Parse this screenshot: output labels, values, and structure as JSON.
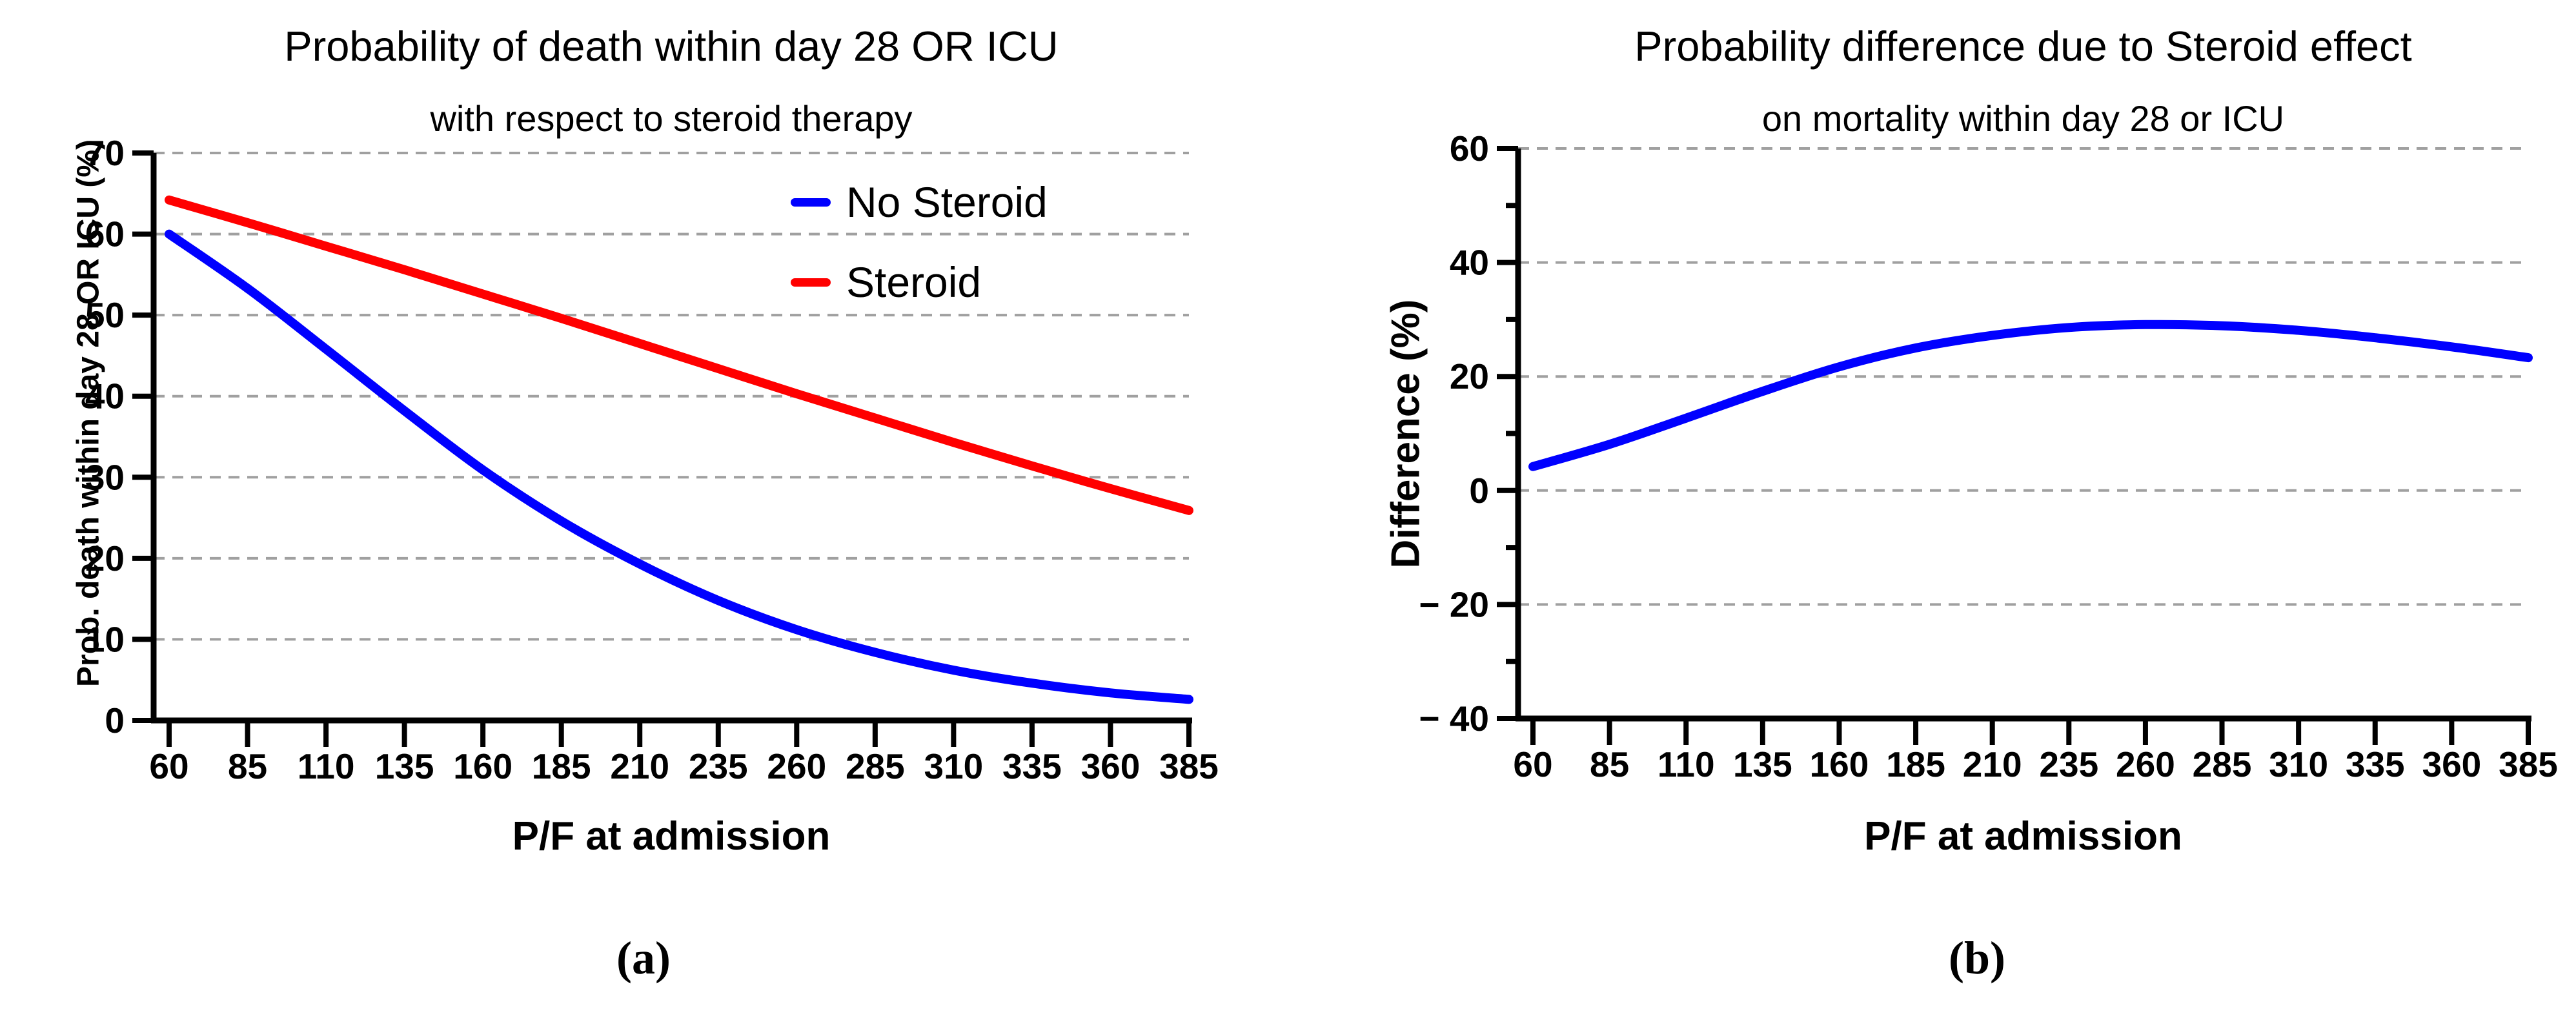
{
  "panels": [
    {
      "id": "a",
      "title": "Probability of death within day 28 OR ICU",
      "subtitle": "with respect to steroid therapy",
      "x_axis_label": "P/F at admission",
      "y_axis_label": "Prob. death within day 28 OR ICU (%)",
      "caption": "(a)",
      "legend": [
        {
          "label": "No Steroid",
          "color": "#0000FF"
        },
        {
          "label": "Steroid",
          "color": "#FF0000"
        }
      ]
    },
    {
      "id": "b",
      "title": "Probability difference due to Steroid effect",
      "subtitle": "on mortality within day 28 or ICU",
      "x_axis_label": "P/F at admission",
      "y_axis_label": "Difference (%)",
      "caption": "(b)"
    }
  ],
  "colors": {
    "no_steroid": "#0000FF",
    "steroid": "#FF0000",
    "difference": "#0000FF",
    "gridline": "#A0A0A0",
    "axis": "#000000"
  },
  "chart_data": [
    {
      "type": "line",
      "title": "Probability of death within day 28 OR ICU",
      "subtitle": "with respect to steroid therapy",
      "xlabel": "P/F at admission",
      "ylabel": "Prob. death within day 28 OR ICU (%)",
      "xlim": [
        60,
        385
      ],
      "ylim": [
        0,
        70
      ],
      "grid": "horizontal-dashed",
      "legend_position": "top-right",
      "x": [
        60,
        85,
        110,
        135,
        160,
        185,
        210,
        235,
        260,
        285,
        310,
        335,
        360,
        385
      ],
      "x_tick_labels": [
        "60",
        "85",
        "110",
        "135",
        "160",
        "185",
        "210",
        "235",
        "260",
        "285",
        "310",
        "335",
        "360",
        "385"
      ],
      "y_ticks": [
        {
          "value": 0,
          "label": "0"
        },
        {
          "value": 10,
          "label": "10"
        },
        {
          "value": 20,
          "label": "20"
        },
        {
          "value": 30,
          "label": "30"
        },
        {
          "value": 40,
          "label": "40"
        },
        {
          "value": 50,
          "label": "50"
        },
        {
          "value": 60,
          "label": "60"
        },
        {
          "value": 70,
          "label": "70"
        }
      ],
      "y_minor_ticks": [],
      "grid_values": [
        10,
        20,
        30,
        40,
        50,
        60,
        70
      ],
      "series": [
        {
          "name": "No Steroid",
          "color": "#0000FF",
          "values": [
            60.0,
            53.3,
            45.8,
            38.2,
            30.9,
            24.6,
            19.3,
            14.8,
            11.2,
            8.4,
            6.2,
            4.6,
            3.4,
            2.6
          ]
        },
        {
          "name": "Steroid",
          "color": "#FF0000",
          "values": [
            64.2,
            61.4,
            58.5,
            55.6,
            52.6,
            49.6,
            46.5,
            43.4,
            40.3,
            37.3,
            34.3,
            31.4,
            28.6,
            25.9
          ]
        }
      ]
    },
    {
      "type": "line",
      "title": "Probability difference due to Steroid effect",
      "subtitle": "on mortality within day 28 or ICU",
      "xlabel": "P/F at admission",
      "ylabel": "Difference (%)",
      "xlim": [
        60,
        385
      ],
      "ylim": [
        -40,
        60
      ],
      "grid": "horizontal-dashed",
      "legend_position": "none",
      "x": [
        60,
        85,
        110,
        135,
        160,
        185,
        210,
        235,
        260,
        285,
        310,
        335,
        360,
        385
      ],
      "x_tick_labels": [
        "60",
        "85",
        "110",
        "135",
        "160",
        "185",
        "210",
        "235",
        "260",
        "285",
        "310",
        "335",
        "360",
        "385"
      ],
      "y_ticks": [
        {
          "value": -40,
          "label": "− 40"
        },
        {
          "value": -20,
          "label": "− 20"
        },
        {
          "value": 0,
          "label": "0"
        },
        {
          "value": 20,
          "label": "20"
        },
        {
          "value": 40,
          "label": "40"
        },
        {
          "value": 60,
          "label": "60"
        }
      ],
      "y_minor_ticks": [
        -30,
        -10,
        10,
        30,
        50
      ],
      "grid_values": [
        -20,
        0,
        20,
        40,
        60
      ],
      "series": [
        {
          "name": "Difference",
          "color": "#0000FF",
          "values": [
            4.2,
            8.1,
            12.7,
            17.4,
            21.7,
            25.0,
            27.2,
            28.6,
            29.1,
            28.9,
            28.1,
            26.8,
            25.2,
            23.3
          ]
        }
      ]
    }
  ]
}
